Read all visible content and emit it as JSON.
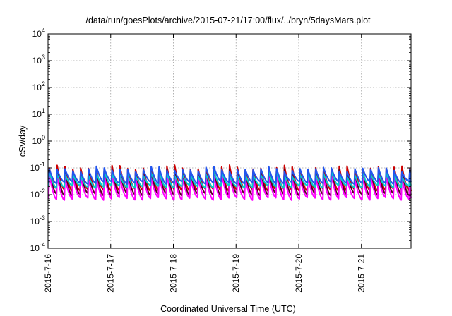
{
  "chart_data": {
    "type": "line",
    "title": "/data/run/goesPlots/archive/2015-07-21/17:00/flux/../bryn/5daysMars.plot",
    "xlabel": "Coordinated Universal Time (UTC)",
    "ylabel": "cSv/day",
    "yscale": "log",
    "ylim": [
      0.0001,
      10000
    ],
    "y_ticks": [
      {
        "value": 0.0001,
        "mantissa": "10",
        "exp": "-4"
      },
      {
        "value": 0.001,
        "mantissa": "10",
        "exp": "-3"
      },
      {
        "value": 0.01,
        "mantissa": "10",
        "exp": "-2"
      },
      {
        "value": 0.1,
        "mantissa": "10",
        "exp": "-1"
      },
      {
        "value": 1,
        "mantissa": "10",
        "exp": "0"
      },
      {
        "value": 10,
        "mantissa": "10",
        "exp": "1"
      },
      {
        "value": 100,
        "mantissa": "10",
        "exp": "2"
      },
      {
        "value": 1000,
        "mantissa": "10",
        "exp": "3"
      },
      {
        "value": 10000,
        "mantissa": "10",
        "exp": "4"
      }
    ],
    "xlim": [
      "2015-07-16T00:00",
      "2015-07-21T19:00"
    ],
    "x_ticks": [
      {
        "value": "2015-07-16T00:00",
        "label": "2015-7-16"
      },
      {
        "value": "2015-07-17T00:00",
        "label": "2015-7-17"
      },
      {
        "value": "2015-07-18T00:00",
        "label": "2015-7-18"
      },
      {
        "value": "2015-07-19T00:00",
        "label": "2015-7-19"
      },
      {
        "value": "2015-07-20T00:00",
        "label": "2015-7-20"
      },
      {
        "value": "2015-07-21T00:00",
        "label": "2015-7-21"
      }
    ],
    "grid": true,
    "legend": "none",
    "pattern": {
      "period_hours": 3,
      "first_peak": "2015-07-16T00:30",
      "rise_hours": 0.25
    },
    "series": [
      {
        "color": "#cc0000",
        "peak": 0.1,
        "trough": 0.015
      },
      {
        "color": "#550022",
        "peak": 0.07,
        "trough": 0.01
      },
      {
        "color": "#ff00ff",
        "peak": 0.045,
        "trough": 0.007
      },
      {
        "color": "#00cccc",
        "peak": 0.06,
        "trough": 0.02
      },
      {
        "color": "#2255ee",
        "peak": 0.09,
        "trough": 0.028
      }
    ]
  }
}
